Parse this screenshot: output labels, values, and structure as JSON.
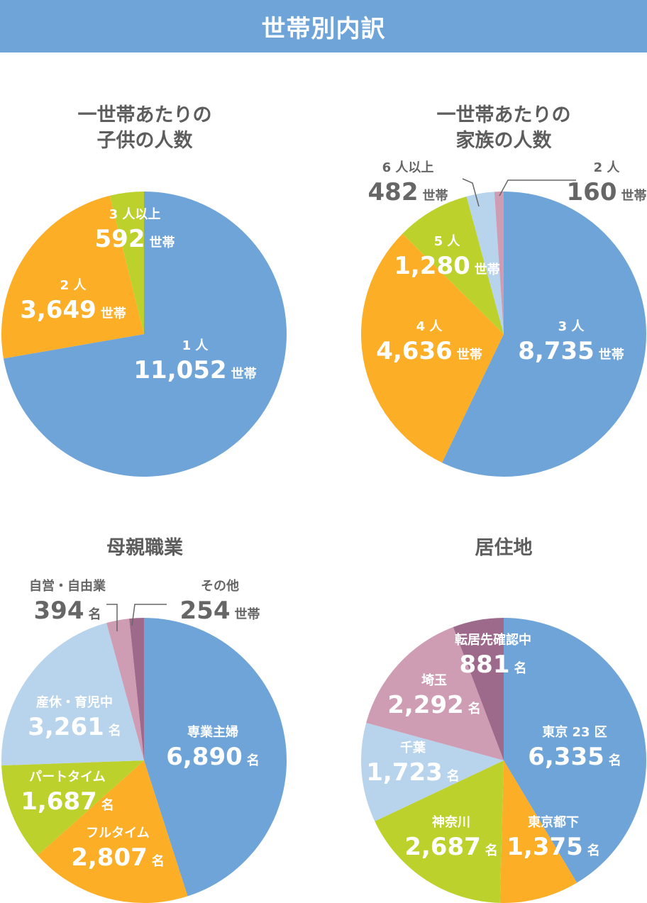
{
  "header": {
    "title": "世帯別内訳"
  },
  "chart_data": [
    {
      "type": "pie",
      "title_line1": "一世帯あたりの",
      "title_line2": "子供の人数",
      "slices": [
        {
          "label": "1 人",
          "value": 11052,
          "display": "11,052",
          "unit": "世帯",
          "color": "#6fa4d8"
        },
        {
          "label": "2 人",
          "value": 3649,
          "display": "3,649",
          "unit": "世帯",
          "color": "#fbae26"
        },
        {
          "label": "3 人以上",
          "value": 592,
          "display": "592",
          "unit": "世帯",
          "color": "#bdd12d"
        }
      ]
    },
    {
      "type": "pie",
      "title_line1": "一世帯あたりの",
      "title_line2": "家族の人数",
      "slices": [
        {
          "label": "3 人",
          "value": 8735,
          "display": "8,735",
          "unit": "世帯",
          "color": "#6fa4d8"
        },
        {
          "label": "4 人",
          "value": 4636,
          "display": "4,636",
          "unit": "世帯",
          "color": "#fbae26"
        },
        {
          "label": "5 人",
          "value": 1280,
          "display": "1,280",
          "unit": "世帯",
          "color": "#bdd12d"
        },
        {
          "label": "6 人以上",
          "value": 482,
          "display": "482",
          "unit": "世帯",
          "color": "#b8d3ec"
        },
        {
          "label": "2 人",
          "value": 160,
          "display": "160",
          "unit": "世帯",
          "color": "#cf9db3"
        }
      ]
    },
    {
      "type": "pie",
      "title_line1": "母親職業",
      "title_line2": "",
      "slices": [
        {
          "label": "専業主婦",
          "value": 6890,
          "display": "6,890",
          "unit": "名",
          "color": "#6fa4d8"
        },
        {
          "label": "フルタイム",
          "value": 2807,
          "display": "2,807",
          "unit": "名",
          "color": "#fbae26"
        },
        {
          "label": "パートタイム",
          "value": 1687,
          "display": "1,687",
          "unit": "名",
          "color": "#bdd12d"
        },
        {
          "label": "産休・育児中",
          "value": 3261,
          "display": "3,261",
          "unit": "名",
          "color": "#b8d3ec"
        },
        {
          "label": "自営・自由業",
          "value": 394,
          "display": "394",
          "unit": "名",
          "color": "#cf9db3"
        },
        {
          "label": "その他",
          "value": 254,
          "display": "254",
          "unit": "世帯",
          "color": "#9e6a8c"
        }
      ]
    },
    {
      "type": "pie",
      "title_line1": "居住地",
      "title_line2": "",
      "slices": [
        {
          "label": "東京 23 区",
          "value": 6335,
          "display": "6,335",
          "unit": "名",
          "color": "#6fa4d8"
        },
        {
          "label": "東京都下",
          "value": 1375,
          "display": "1,375",
          "unit": "名",
          "color": "#fbae26"
        },
        {
          "label": "神奈川",
          "value": 2687,
          "display": "2,687",
          "unit": "名",
          "color": "#bdd12d"
        },
        {
          "label": "千葉",
          "value": 1723,
          "display": "1,723",
          "unit": "名",
          "color": "#b8d3ec"
        },
        {
          "label": "埼玉",
          "value": 2292,
          "display": "2,292",
          "unit": "名",
          "color": "#cf9db3"
        },
        {
          "label": "転居先確認中",
          "value": 881,
          "display": "881",
          "unit": "名",
          "color": "#9e6a8c"
        }
      ]
    }
  ]
}
